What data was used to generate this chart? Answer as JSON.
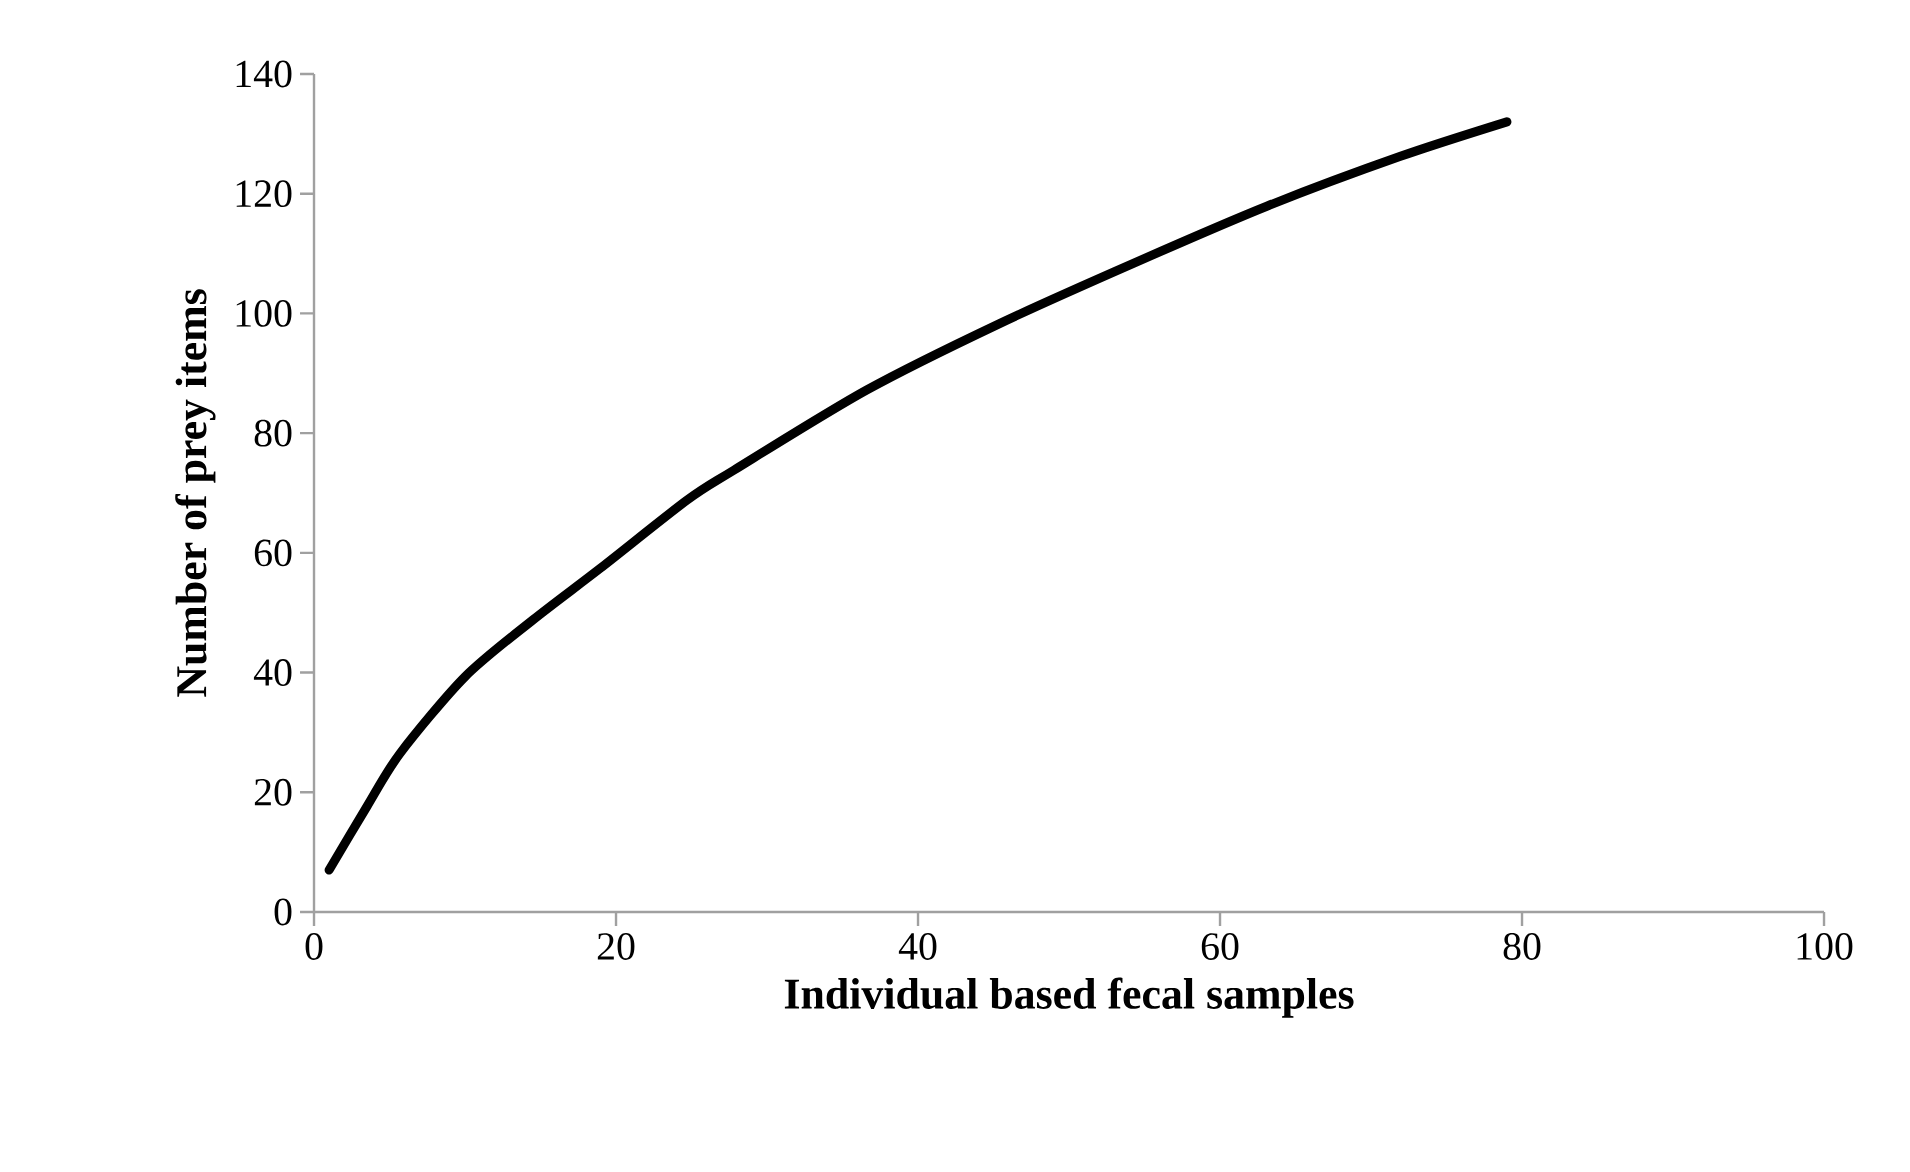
{
  "chart_data": {
    "type": "line",
    "xlabel": "Individual based fecal samples",
    "ylabel": "Number of prey items",
    "series": [
      {
        "color": "#000000",
        "x": [
          1,
          3.5,
          5.7,
          10,
          14.5,
          19,
          24.7,
          27.8,
          36.6,
          45.4,
          54.3,
          63.1,
          71.9,
          79
        ],
        "values": [
          7,
          17.6,
          26.5,
          39.3,
          48.8,
          57.5,
          68.8,
          73.8,
          87.2,
          98.3,
          108.4,
          117.9,
          126.2,
          132
        ]
      }
    ],
    "xlim": [
      0,
      100
    ],
    "xticks": [
      0,
      20,
      40,
      60,
      80,
      100
    ],
    "ylim": [
      0,
      140
    ],
    "yticks": [
      0,
      20,
      40,
      60,
      80,
      100,
      120,
      140
    ],
    "marker": "none",
    "line_style": "solid"
  }
}
